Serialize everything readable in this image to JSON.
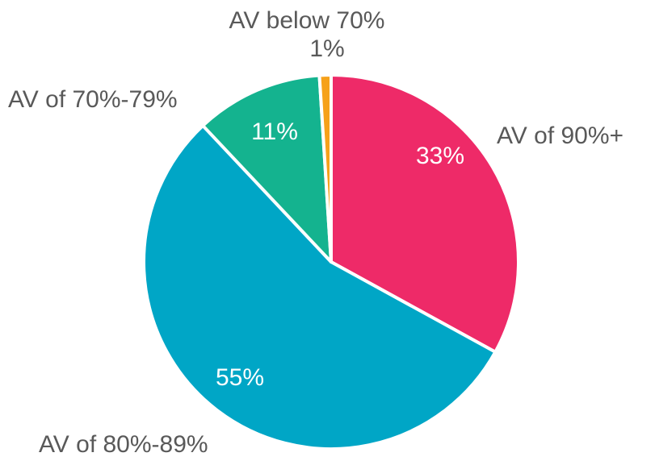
{
  "chart_data": {
    "type": "pie",
    "categories": [
      "AV of 90%+",
      "AV of 80%-89%",
      "AV of 70%-79%",
      "AV below 70%"
    ],
    "values": [
      33,
      55,
      11,
      1
    ],
    "value_labels": [
      "33%",
      "55%",
      "11%",
      "1%"
    ],
    "colors": [
      "#ee2a68",
      "#00a6c6",
      "#14b38f",
      "#f6a11a"
    ]
  }
}
